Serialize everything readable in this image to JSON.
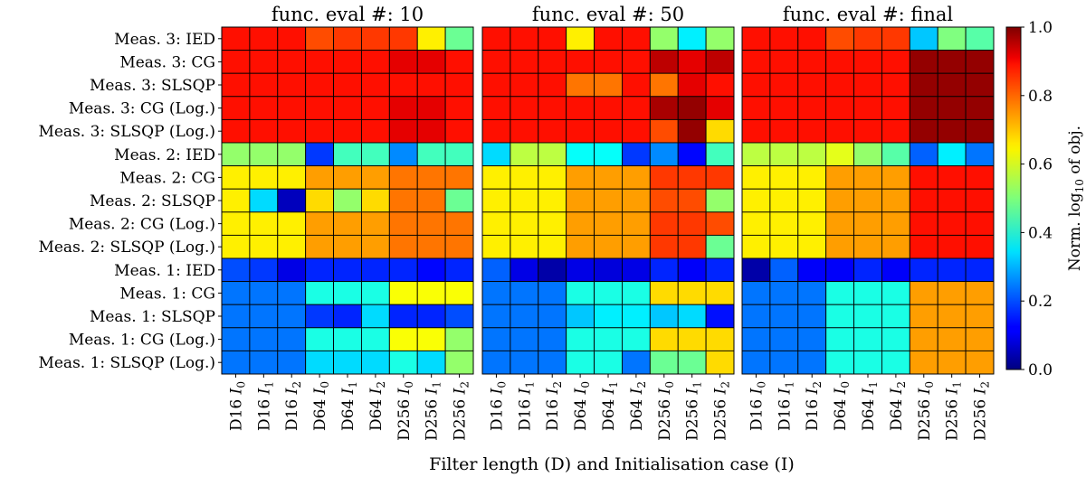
{
  "chart_data": {
    "type": "heatmap",
    "xlabel": "Filter length (D) and Initialisation case (I)",
    "colorbar": {
      "label": "Norm. log10 of obj.",
      "label_main": "Norm. log",
      "label_sub": "10",
      "label_tail": " of obj.",
      "range": [
        0.0,
        1.0
      ],
      "ticks": [
        "0.0",
        "0.2",
        "0.4",
        "0.6",
        "0.8",
        "1.0"
      ],
      "colormap": "jet"
    },
    "rows": [
      "Meas. 3: IED",
      "Meas. 3: CG",
      "Meas. 3: SLSQP",
      "Meas. 3: CG (Log.)",
      "Meas. 3: SLSQP (Log.)",
      "Meas. 2: IED",
      "Meas. 2: CG",
      "Meas. 2: SLSQP",
      "Meas. 2: CG (Log.)",
      "Meas. 2: SLSQP (Log.)",
      "Meas. 1: IED",
      "Meas. 1: CG",
      "Meas. 1: SLSQP",
      "Meas. 1: CG (Log.)",
      "Meas. 1: SLSQP (Log.)"
    ],
    "columns": [
      {
        "d": "D16",
        "i": "I",
        "sub": "0"
      },
      {
        "d": "D16",
        "i": "I",
        "sub": "1"
      },
      {
        "d": "D16",
        "i": "I",
        "sub": "2"
      },
      {
        "d": "D64",
        "i": "I",
        "sub": "0"
      },
      {
        "d": "D64",
        "i": "I",
        "sub": "1"
      },
      {
        "d": "D64",
        "i": "I",
        "sub": "2"
      },
      {
        "d": "D256",
        "i": "I",
        "sub": "0"
      },
      {
        "d": "D256",
        "i": "I",
        "sub": "1"
      },
      {
        "d": "D256",
        "i": "I",
        "sub": "2"
      }
    ],
    "panels": [
      {
        "title": "func. eval #: 10",
        "values": [
          [
            0.86,
            0.86,
            0.86,
            0.8,
            0.82,
            0.82,
            0.82,
            0.64,
            0.48
          ],
          [
            0.86,
            0.86,
            0.86,
            0.86,
            0.86,
            0.86,
            0.9,
            0.9,
            0.86
          ],
          [
            0.86,
            0.86,
            0.86,
            0.86,
            0.86,
            0.86,
            0.86,
            0.86,
            0.86
          ],
          [
            0.86,
            0.86,
            0.86,
            0.86,
            0.86,
            0.86,
            0.9,
            0.9,
            0.86
          ],
          [
            0.86,
            0.86,
            0.86,
            0.86,
            0.86,
            0.86,
            0.9,
            0.9,
            0.86
          ],
          [
            0.52,
            0.52,
            0.52,
            0.18,
            0.44,
            0.44,
            0.26,
            0.44,
            0.44
          ],
          [
            0.64,
            0.64,
            0.64,
            0.72,
            0.72,
            0.72,
            0.76,
            0.76,
            0.76
          ],
          [
            0.64,
            0.34,
            0.06,
            0.66,
            0.52,
            0.66,
            0.76,
            0.76,
            0.48
          ],
          [
            0.64,
            0.64,
            0.64,
            0.72,
            0.72,
            0.72,
            0.76,
            0.76,
            0.76
          ],
          [
            0.64,
            0.64,
            0.64,
            0.72,
            0.72,
            0.72,
            0.76,
            0.76,
            0.76
          ],
          [
            0.2,
            0.18,
            0.1,
            0.16,
            0.16,
            0.16,
            0.16,
            0.13,
            0.16
          ],
          [
            0.24,
            0.24,
            0.24,
            0.4,
            0.4,
            0.4,
            0.62,
            0.62,
            0.62
          ],
          [
            0.24,
            0.24,
            0.24,
            0.18,
            0.16,
            0.34,
            0.16,
            0.16,
            0.2
          ],
          [
            0.24,
            0.24,
            0.24,
            0.4,
            0.4,
            0.4,
            0.62,
            0.62,
            0.52
          ],
          [
            0.24,
            0.24,
            0.24,
            0.34,
            0.34,
            0.34,
            0.4,
            0.34,
            0.52
          ]
        ]
      },
      {
        "title": "func. eval #: 50",
        "values": [
          [
            0.86,
            0.86,
            0.86,
            0.64,
            0.86,
            0.86,
            0.52,
            0.36,
            0.52
          ],
          [
            0.86,
            0.86,
            0.86,
            0.86,
            0.86,
            0.86,
            0.94,
            0.9,
            0.94
          ],
          [
            0.86,
            0.86,
            0.86,
            0.76,
            0.76,
            0.86,
            0.76,
            0.9,
            0.86
          ],
          [
            0.86,
            0.86,
            0.86,
            0.86,
            0.86,
            0.86,
            0.96,
            0.98,
            0.9
          ],
          [
            0.86,
            0.86,
            0.86,
            0.86,
            0.86,
            0.86,
            0.8,
            0.98,
            0.66
          ],
          [
            0.34,
            0.56,
            0.56,
            0.38,
            0.38,
            0.18,
            0.26,
            0.13,
            0.44
          ],
          [
            0.64,
            0.64,
            0.64,
            0.72,
            0.72,
            0.72,
            0.82,
            0.82,
            0.82
          ],
          [
            0.64,
            0.64,
            0.64,
            0.72,
            0.72,
            0.72,
            0.8,
            0.8,
            0.52
          ],
          [
            0.64,
            0.64,
            0.64,
            0.72,
            0.72,
            0.72,
            0.82,
            0.82,
            0.8
          ],
          [
            0.64,
            0.64,
            0.64,
            0.72,
            0.72,
            0.72,
            0.82,
            0.82,
            0.48
          ],
          [
            0.22,
            0.1,
            0.04,
            0.1,
            0.09,
            0.1,
            0.16,
            0.12,
            0.16
          ],
          [
            0.24,
            0.24,
            0.24,
            0.4,
            0.4,
            0.4,
            0.66,
            0.66,
            0.66
          ],
          [
            0.24,
            0.24,
            0.24,
            0.32,
            0.36,
            0.36,
            0.32,
            0.34,
            0.14
          ],
          [
            0.24,
            0.24,
            0.24,
            0.4,
            0.4,
            0.4,
            0.66,
            0.66,
            0.66
          ],
          [
            0.24,
            0.24,
            0.24,
            0.4,
            0.4,
            0.24,
            0.48,
            0.48,
            0.66
          ]
        ]
      },
      {
        "title": "func. eval #: final",
        "values": [
          [
            0.86,
            0.86,
            0.86,
            0.8,
            0.82,
            0.82,
            0.32,
            0.5,
            0.46
          ],
          [
            0.86,
            0.86,
            0.86,
            0.86,
            0.86,
            0.86,
            0.98,
            0.98,
            0.98
          ],
          [
            0.86,
            0.86,
            0.86,
            0.86,
            0.86,
            0.86,
            0.98,
            0.98,
            0.98
          ],
          [
            0.86,
            0.86,
            0.86,
            0.86,
            0.86,
            0.86,
            0.98,
            0.98,
            0.98
          ],
          [
            0.86,
            0.86,
            0.86,
            0.86,
            0.86,
            0.86,
            0.98,
            0.98,
            0.98
          ],
          [
            0.56,
            0.56,
            0.56,
            0.6,
            0.52,
            0.46,
            0.22,
            0.36,
            0.24
          ],
          [
            0.64,
            0.64,
            0.64,
            0.72,
            0.72,
            0.72,
            0.86,
            0.86,
            0.86
          ],
          [
            0.64,
            0.64,
            0.64,
            0.72,
            0.72,
            0.72,
            0.86,
            0.86,
            0.86
          ],
          [
            0.64,
            0.64,
            0.64,
            0.72,
            0.72,
            0.72,
            0.86,
            0.86,
            0.86
          ],
          [
            0.64,
            0.64,
            0.64,
            0.72,
            0.72,
            0.72,
            0.86,
            0.86,
            0.86
          ],
          [
            0.04,
            0.22,
            0.12,
            0.12,
            0.16,
            0.12,
            0.16,
            0.16,
            0.16
          ],
          [
            0.24,
            0.24,
            0.24,
            0.4,
            0.4,
            0.4,
            0.72,
            0.72,
            0.72
          ],
          [
            0.24,
            0.24,
            0.24,
            0.4,
            0.4,
            0.4,
            0.72,
            0.72,
            0.72
          ],
          [
            0.24,
            0.24,
            0.24,
            0.4,
            0.4,
            0.4,
            0.72,
            0.72,
            0.72
          ],
          [
            0.24,
            0.24,
            0.24,
            0.4,
            0.4,
            0.4,
            0.72,
            0.72,
            0.72
          ]
        ]
      }
    ]
  }
}
